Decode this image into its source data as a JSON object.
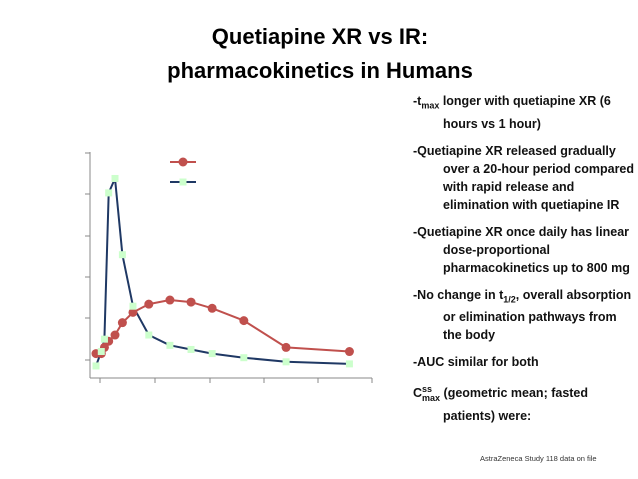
{
  "slide": {
    "title_line1": "Quetiapine XR vs IR:",
    "title_line2": "pharmacokinetics in Humans",
    "bullets": [
      {
        "pre": "-t",
        "sub": "max",
        "post": " longer with quetiapine XR (6 hours vs 1 hour)"
      },
      {
        "pre": "-Quetiapine XR released gradually over a 20-hour period compared with rapid release and elimination with quetiapine IR",
        "sub": "",
        "post": ""
      },
      {
        "pre": "-Quetiapine XR once daily has linear dose-proportional pharmacokinetics up to 800 mg",
        "sub": "",
        "post": ""
      },
      {
        "pre": "-No change in t",
        "sub": "1/2",
        "post": ", overall absorption or elimination pathways from the body"
      },
      {
        "pre": "-AUC similar for both",
        "sub": "",
        "post": ""
      }
    ],
    "last_bullet": {
      "c": "C",
      "sup": "ss",
      "sub": "max",
      "post": " (geometric mean; fasted patients) were:"
    },
    "footnote": "AstraZeneca Study 118 data on file"
  },
  "chart_data": {
    "type": "line",
    "title": "",
    "xlabel": "",
    "ylabel": "",
    "xlim": [
      0,
      25
    ],
    "ylim": [
      0,
      100
    ],
    "grid": false,
    "legend": {
      "position": "top-center",
      "entries": [
        "",
        ""
      ]
    },
    "colors": {
      "xr": "#c0504d",
      "ir": "#1f3864",
      "ir_marker": "#ccffcc"
    },
    "series": [
      {
        "x": [
          0,
          0.5,
          0.8,
          1.2,
          1.8,
          2.5,
          3.5,
          5,
          7,
          9,
          11,
          14,
          18,
          24
        ],
        "y": [
          7,
          7,
          10,
          13,
          16,
          22,
          27,
          31,
          33,
          32,
          29,
          23,
          10,
          8
        ]
      },
      {
        "x": [
          0,
          0.5,
          0.8,
          1.2,
          1.8,
          2.5,
          3.5,
          5,
          7,
          9,
          11,
          14,
          18,
          24
        ],
        "y": [
          1,
          8,
          14,
          85,
          92,
          55,
          30,
          16,
          11,
          9,
          7,
          5,
          3,
          2
        ]
      }
    ]
  }
}
